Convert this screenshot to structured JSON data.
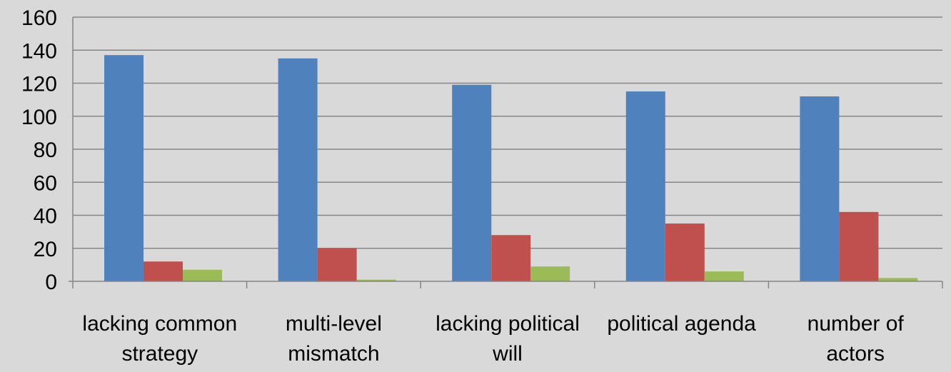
{
  "chart_data": {
    "type": "bar",
    "categories": [
      [
        "lacking common",
        "strategy"
      ],
      [
        "multi-level",
        "mismatch"
      ],
      [
        "lacking political",
        "will"
      ],
      [
        "political agenda"
      ],
      [
        "number of",
        "actors"
      ]
    ],
    "series": [
      {
        "values": [
          137,
          135,
          119,
          115,
          112
        ],
        "color": "#4f81bd"
      },
      {
        "values": [
          12,
          20,
          28,
          35,
          42
        ],
        "color": "#c0504d"
      },
      {
        "values": [
          7,
          1,
          9,
          6,
          2
        ],
        "color": "#9bbb59"
      }
    ],
    "yticks": [
      "0",
      "20",
      "40",
      "60",
      "80",
      "100",
      "120",
      "140",
      "160"
    ],
    "ylim": [
      0,
      160
    ],
    "grid": true,
    "legend": "none",
    "background": "#d9d9d9",
    "gridline_color": "#868686"
  }
}
